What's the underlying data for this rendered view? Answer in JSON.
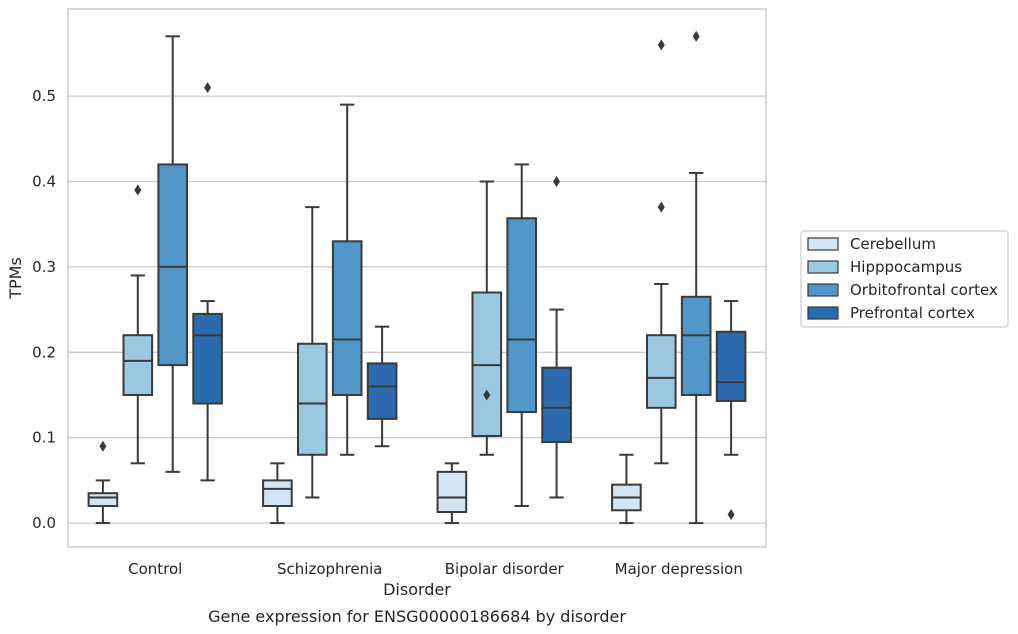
{
  "chart_data": {
    "type": "box",
    "title": "",
    "caption": "Gene expression for ENSG00000186684 by disorder",
    "xlabel": "Disorder",
    "ylabel": "TPMs",
    "ylim": [
      -0.028,
      0.602
    ],
    "yticks": [
      0.0,
      0.1,
      0.2,
      0.3,
      0.4,
      0.5
    ],
    "ytick_labels": [
      "0.0",
      "0.1",
      "0.2",
      "0.3",
      "0.4",
      "0.5"
    ],
    "grid": "horizontal",
    "legend_position": "right",
    "categories": [
      "Control",
      "Schizophrenia",
      "Bipolar disorder",
      "Major depression"
    ],
    "series": [
      {
        "name": "Cerebellum",
        "color": "#d3e4f3",
        "boxes": [
          {
            "whisker_low": 0.0,
            "q1": 0.02,
            "median": 0.03,
            "q3": 0.035,
            "whisker_high": 0.05,
            "outliers": [
              0.09
            ]
          },
          {
            "whisker_low": 0.0,
            "q1": 0.02,
            "median": 0.04,
            "q3": 0.05,
            "whisker_high": 0.07,
            "outliers": []
          },
          {
            "whisker_low": 0.0,
            "q1": 0.013,
            "median": 0.03,
            "q3": 0.06,
            "whisker_high": 0.07,
            "outliers": []
          },
          {
            "whisker_low": 0.0,
            "q1": 0.015,
            "median": 0.03,
            "q3": 0.045,
            "whisker_high": 0.08,
            "outliers": []
          }
        ]
      },
      {
        "name": "Hipppocampus",
        "color": "#9ac8e0",
        "boxes": [
          {
            "whisker_low": 0.07,
            "q1": 0.15,
            "median": 0.19,
            "q3": 0.22,
            "whisker_high": 0.29,
            "outliers": [
              0.39
            ]
          },
          {
            "whisker_low": 0.03,
            "q1": 0.08,
            "median": 0.14,
            "q3": 0.21,
            "whisker_high": 0.37,
            "outliers": []
          },
          {
            "whisker_low": 0.08,
            "q1": 0.102,
            "median": 0.185,
            "q3": 0.27,
            "whisker_high": 0.4,
            "outliers": [
              0.15
            ]
          },
          {
            "whisker_low": 0.07,
            "q1": 0.135,
            "median": 0.17,
            "q3": 0.22,
            "whisker_high": 0.28,
            "outliers": [
              0.37,
              0.56
            ]
          }
        ]
      },
      {
        "name": "Orbitofrontal cortex",
        "color": "#5096c8",
        "boxes": [
          {
            "whisker_low": 0.06,
            "q1": 0.185,
            "median": 0.3,
            "q3": 0.42,
            "whisker_high": 0.57,
            "outliers": []
          },
          {
            "whisker_low": 0.08,
            "q1": 0.15,
            "median": 0.215,
            "q3": 0.33,
            "whisker_high": 0.49,
            "outliers": []
          },
          {
            "whisker_low": 0.02,
            "q1": 0.13,
            "median": 0.215,
            "q3": 0.357,
            "whisker_high": 0.42,
            "outliers": []
          },
          {
            "whisker_low": 0.0,
            "q1": 0.15,
            "median": 0.22,
            "q3": 0.265,
            "whisker_high": 0.41,
            "outliers": [
              0.57
            ]
          }
        ]
      },
      {
        "name": "Prefrontal cortex",
        "color": "#2a6aad",
        "boxes": [
          {
            "whisker_low": 0.05,
            "q1": 0.14,
            "median": 0.22,
            "q3": 0.245,
            "whisker_high": 0.26,
            "outliers": [
              0.51
            ]
          },
          {
            "whisker_low": 0.09,
            "q1": 0.122,
            "median": 0.16,
            "q3": 0.187,
            "whisker_high": 0.23,
            "outliers": []
          },
          {
            "whisker_low": 0.03,
            "q1": 0.095,
            "median": 0.135,
            "q3": 0.182,
            "whisker_high": 0.25,
            "outliers": [
              0.4
            ]
          },
          {
            "whisker_low": 0.08,
            "q1": 0.143,
            "median": 0.165,
            "q3": 0.224,
            "whisker_high": 0.26,
            "outliers": [
              0.01
            ]
          }
        ]
      }
    ]
  }
}
